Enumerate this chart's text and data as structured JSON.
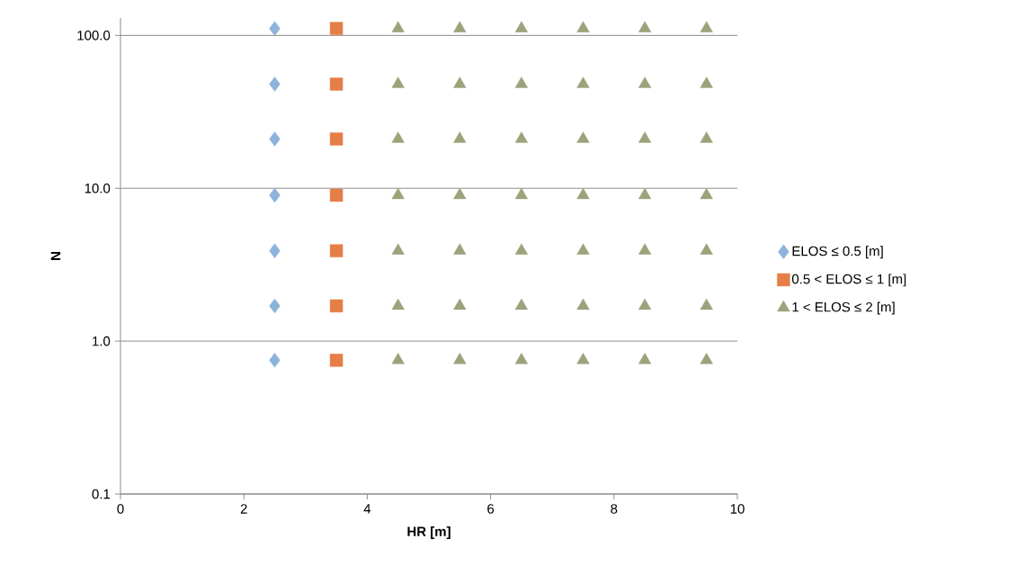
{
  "chart_data": {
    "type": "scatter",
    "xlabel": "HR [m]",
    "ylabel": "N",
    "log": "y",
    "xlim": [
      0,
      10
    ],
    "xticks": [
      0,
      2,
      4,
      6,
      8,
      10
    ],
    "ylim": [
      0.1,
      130
    ],
    "yticks": [
      0.1,
      {
        "value": 1,
        "label": "1.0"
      },
      {
        "value": 10,
        "label": "10.0"
      },
      {
        "value": 100,
        "label": "100.0"
      }
    ],
    "grid": "y",
    "legend": "right",
    "series": [
      {
        "name": "ELOS ≤ 0.5 [m]",
        "color": "#8db3da",
        "marker": "diamond",
        "x": [
          2.5,
          2.5,
          2.5,
          2.5,
          2.5,
          2.5,
          2.5
        ],
        "values": [
          0.75,
          1.7,
          3.9,
          9,
          21,
          48,
          111
        ]
      },
      {
        "name": "0.5 < ELOS ≤ 1 [m]",
        "color": "#e57f47",
        "marker": "square",
        "x": [
          3.5,
          3.5,
          3.5,
          3.5,
          3.5,
          3.5,
          3.5
        ],
        "values": [
          0.75,
          1.7,
          3.9,
          9,
          21,
          48,
          111
        ]
      },
      {
        "name": "1 < ELOS ≤ 2 [m]",
        "color": "#9ca37b",
        "marker": "triangle",
        "x": [
          4.5,
          5.5,
          6.5,
          7.5,
          8.5,
          9.5,
          4.5,
          5.5,
          6.5,
          7.5,
          8.5,
          9.5,
          4.5,
          5.5,
          6.5,
          7.5,
          8.5,
          9.5,
          4.5,
          5.5,
          6.5,
          7.5,
          8.5,
          9.5,
          4.5,
          5.5,
          6.5,
          7.5,
          8.5,
          9.5,
          4.5,
          5.5,
          6.5,
          7.5,
          8.5,
          9.5,
          4.5,
          5.5,
          6.5,
          7.5,
          8.5,
          9.5
        ],
        "values": [
          0.75,
          0.75,
          0.75,
          0.75,
          0.75,
          0.75,
          1.7,
          1.7,
          1.7,
          1.7,
          1.7,
          1.7,
          3.9,
          3.9,
          3.9,
          3.9,
          3.9,
          3.9,
          9,
          9,
          9,
          9,
          9,
          9,
          21,
          21,
          21,
          21,
          21,
          21,
          48,
          48,
          48,
          48,
          48,
          48,
          111,
          111,
          111,
          111,
          111,
          111
        ]
      }
    ]
  }
}
